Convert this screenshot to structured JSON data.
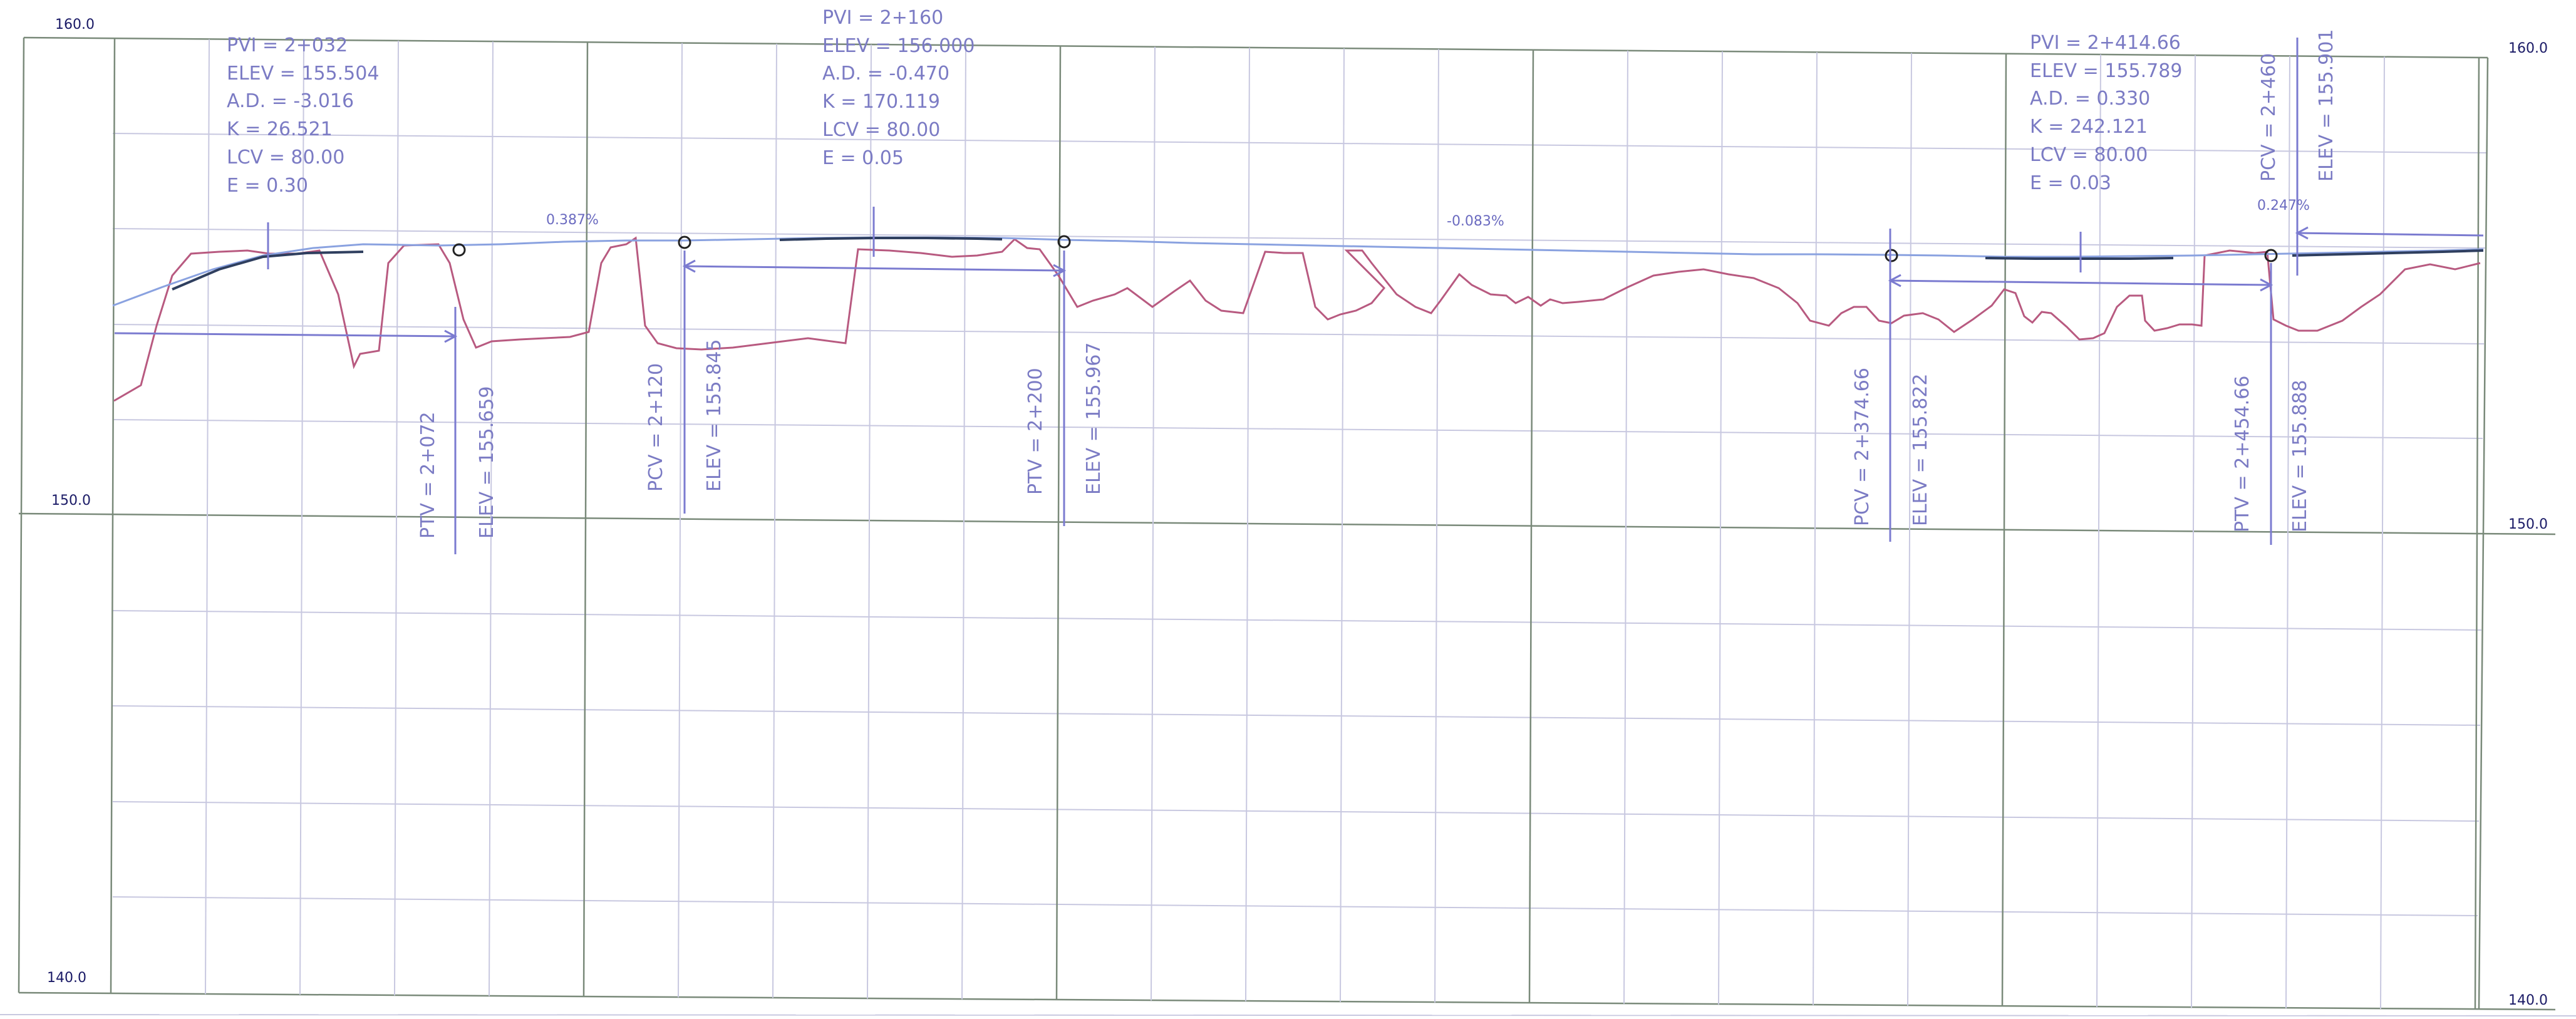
{
  "axis": {
    "left_labels": [
      "160.0",
      "150.0",
      "140.0"
    ],
    "right_labels": [
      "160.0",
      "150.0",
      "140.0"
    ]
  },
  "curves": [
    {
      "pvi": "PVI = 2+032",
      "elev": "ELEV = 155.504",
      "ad": "A.D. = -3.016",
      "k": "K = 26.521",
      "lcv": "LCV = 80.00",
      "e": "E = 0.30"
    },
    {
      "pvi": "PVI = 2+160",
      "elev": "ELEV = 156.000",
      "ad": "A.D. = -0.470",
      "k": "K = 170.119",
      "lcv": "LCV = 80.00",
      "e": "E = 0.05"
    },
    {
      "pvi": "PVI = 2+414.66",
      "elev": "ELEV = 155.789",
      "ad": "A.D. = 0.330",
      "k": "K = 242.121",
      "lcv": "LCV = 80.00",
      "e": "E = 0.03"
    }
  ],
  "grades": [
    "0.387%",
    "-0.083%",
    "0.247%"
  ],
  "stations": [
    {
      "sta": "PTV = 2+072",
      "elev": "ELEV = 155.659"
    },
    {
      "sta": "PCV = 2+120",
      "elev": "ELEV = 155.845"
    },
    {
      "sta": "PTV = 2+200",
      "elev": "ELEV = 155.967"
    },
    {
      "sta": "PCV = 2+374.66",
      "elev": "ELEV = 155.822"
    },
    {
      "sta": "PTV = 2+454.66",
      "elev": "ELEV = 155.888"
    },
    {
      "sta": "PCV = 2+460",
      "elev": "ELEV = 155.901"
    }
  ],
  "colors": {
    "ground_line": "#b85a80",
    "design_line": "#8aa2e0",
    "annotation": "#7b7bc4",
    "grid": "#c8c8e0"
  }
}
